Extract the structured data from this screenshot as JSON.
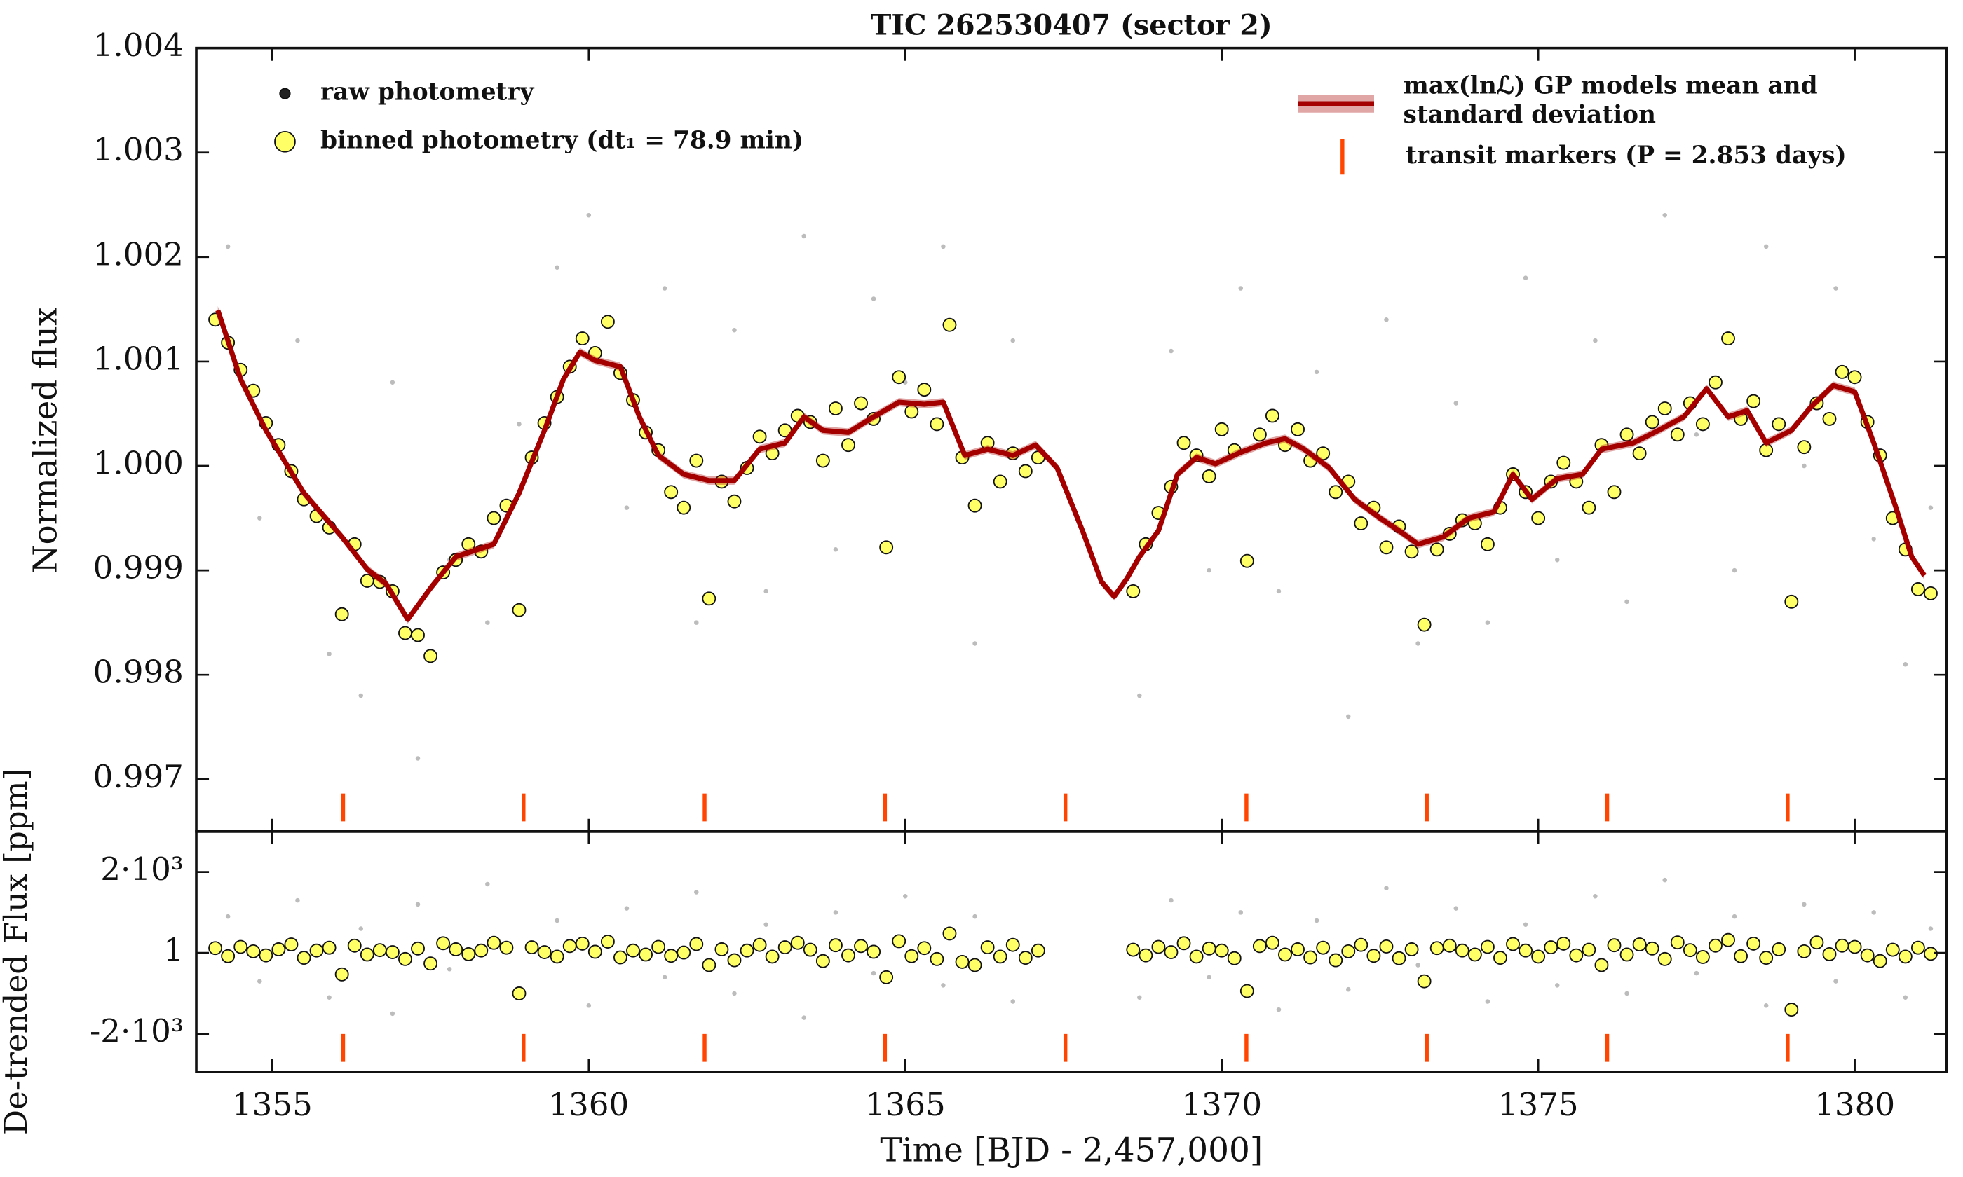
{
  "chart_data": [
    {
      "type": "scatter",
      "title": "TIC 262530407 (sector 2)",
      "ylabel": "Normalized flux",
      "xlim": [
        1353.8,
        1381.45
      ],
      "ylim": [
        0.9965,
        1.004
      ],
      "yticks": [
        0.997,
        0.998,
        0.999,
        {
          "value": 1,
          "label": "1.000"
        },
        1.001,
        1.002,
        1.003,
        1.004
      ],
      "series": [
        {
          "name": "raw photometry",
          "color": "#222222",
          "marker": ".",
          "x": [
            1354.3,
            1354.8,
            1355.4,
            1355.9,
            1356.4,
            1356.9,
            1357.3,
            1357.8,
            1358.4,
            1358.9,
            1359.5,
            1360.0,
            1360.6,
            1361.2,
            1361.7,
            1362.3,
            1362.8,
            1363.4,
            1363.9,
            1364.5,
            1365.0,
            1365.6,
            1366.1,
            1366.7,
            1368.7,
            1369.2,
            1369.8,
            1370.3,
            1370.9,
            1371.5,
            1372.0,
            1372.6,
            1373.1,
            1373.7,
            1374.2,
            1374.8,
            1375.3,
            1375.9,
            1376.4,
            1377.0,
            1377.5,
            1378.1,
            1378.6,
            1379.2,
            1379.7,
            1380.3,
            1380.8,
            1381.2
          ],
          "values": [
            1.0021,
            0.9995,
            1.0012,
            0.9982,
            0.9978,
            1.0008,
            0.9972,
            0.9991,
            0.9985,
            1.0004,
            1.0019,
            1.0024,
            0.9996,
            1.0017,
            0.9985,
            1.0013,
            0.9988,
            1.0022,
            0.9992,
            1.0016,
            1.0008,
            1.0021,
            0.9983,
            1.0012,
            0.9978,
            1.0011,
            0.999,
            1.0017,
            0.9988,
            1.0009,
            0.9976,
            1.0014,
            0.9983,
            1.0006,
            0.9985,
            1.0018,
            0.9991,
            1.0012,
            0.9987,
            1.0024,
            1.0003,
            0.999,
            1.0021,
            1.0,
            1.0017,
            0.9993,
            0.9981,
            0.9996
          ]
        },
        {
          "name": "binned photometry (dt₁ = 78.9 min)",
          "color": "#ffff66",
          "marker": "o",
          "x": [
            1354.1,
            1354.3,
            1354.5,
            1354.7,
            1354.9,
            1355.1,
            1355.3,
            1355.5,
            1355.7,
            1355.9,
            1356.1,
            1356.3,
            1356.5,
            1356.7,
            1356.9,
            1357.1,
            1357.3,
            1357.5,
            1357.7,
            1357.9,
            1358.1,
            1358.3,
            1358.5,
            1358.7,
            1358.9,
            1359.1,
            1359.3,
            1359.5,
            1359.7,
            1359.9,
            1360.1,
            1360.3,
            1360.5,
            1360.7,
            1360.9,
            1361.1,
            1361.3,
            1361.5,
            1361.7,
            1361.9,
            1362.1,
            1362.3,
            1362.5,
            1362.7,
            1362.9,
            1363.1,
            1363.3,
            1363.5,
            1363.7,
            1363.9,
            1364.1,
            1364.3,
            1364.5,
            1364.7,
            1364.9,
            1365.1,
            1365.3,
            1365.5,
            1365.7,
            1365.9,
            1366.1,
            1366.3,
            1366.5,
            1366.7,
            1366.9,
            1367.1,
            1368.6,
            1368.8,
            1369.0,
            1369.2,
            1369.4,
            1369.6,
            1369.8,
            1370.0,
            1370.2,
            1370.4,
            1370.6,
            1370.8,
            1371.0,
            1371.2,
            1371.4,
            1371.6,
            1371.8,
            1372.0,
            1372.2,
            1372.4,
            1372.6,
            1372.8,
            1373.0,
            1373.2,
            1373.4,
            1373.6,
            1373.8,
            1374.0,
            1374.2,
            1374.4,
            1374.6,
            1374.8,
            1375.0,
            1375.2,
            1375.4,
            1375.6,
            1375.8,
            1376.0,
            1376.2,
            1376.4,
            1376.6,
            1376.8,
            1377.0,
            1377.2,
            1377.4,
            1377.6,
            1377.8,
            1378.0,
            1378.2,
            1378.4,
            1378.6,
            1378.8,
            1379.0,
            1379.2,
            1379.4,
            1379.6,
            1379.8,
            1380.0,
            1380.2,
            1380.4,
            1380.6,
            1380.8,
            1381.0,
            1381.2
          ],
          "values": [
            1.0014,
            1.00118,
            1.00092,
            1.00072,
            1.00041,
            1.0002,
            0.99995,
            0.99968,
            0.99952,
            0.99941,
            0.99858,
            0.99925,
            0.9989,
            0.99889,
            0.9988,
            0.9984,
            0.99838,
            0.99818,
            0.99898,
            0.9991,
            0.99925,
            0.99918,
            0.9995,
            0.99962,
            0.99862,
            1.00008,
            1.00041,
            1.00066,
            1.00095,
            1.00122,
            1.00108,
            1.00138,
            1.00089,
            1.00063,
            1.00032,
            1.00015,
            0.99975,
            0.9996,
            1.00005,
            0.99873,
            0.99985,
            0.99966,
            0.99998,
            1.00028,
            1.00012,
            1.00034,
            1.00048,
            1.00042,
            1.00005,
            1.00055,
            1.0002,
            1.0006,
            1.00045,
            0.99922,
            1.00085,
            1.00052,
            1.00073,
            1.0004,
            1.00135,
            1.00008,
            0.99962,
            1.00022,
            0.99985,
            1.00012,
            0.99995,
            1.00008,
            0.9988,
            0.99925,
            0.99955,
            0.9998,
            1.00022,
            1.0001,
            0.9999,
            1.00035,
            1.00015,
            0.99909,
            1.0003,
            1.00048,
            1.0002,
            1.00035,
            1.00005,
            1.00012,
            0.99975,
            0.99985,
            0.99945,
            0.9996,
            0.99922,
            0.99942,
            0.99918,
            0.99848,
            0.9992,
            0.99935,
            0.99948,
            0.99945,
            0.99925,
            0.9996,
            0.99992,
            0.99975,
            0.9995,
            0.99985,
            1.00003,
            0.99985,
            0.9996,
            1.0002,
            0.99975,
            1.0003,
            1.00012,
            1.00042,
            1.00055,
            1.0003,
            1.0006,
            1.0004,
            1.0008,
            1.00122,
            1.00045,
            1.00062,
            1.00015,
            1.0004,
            0.9987,
            1.00018,
            1.0006,
            1.00045,
            1.0009,
            1.00085,
            1.00042,
            1.0001,
            0.9995,
            0.9992,
            0.99882,
            0.99878
          ]
        },
        {
          "name": "max(lnℒ) GP models mean and standard deviation",
          "color": "#a50000",
          "style": "line",
          "std": 4e-05,
          "x": [
            1354.14,
            1354.5,
            1354.9,
            1355.5,
            1356.1,
            1356.5,
            1356.8,
            1357.14,
            1357.5,
            1357.9,
            1358.5,
            1358.9,
            1359.3,
            1359.6,
            1359.86,
            1360.1,
            1360.5,
            1360.8,
            1361.1,
            1361.5,
            1361.9,
            1362.3,
            1362.7,
            1363.1,
            1363.4,
            1363.7,
            1364.1,
            1364.5,
            1364.9,
            1365.3,
            1365.6,
            1365.94,
            1366.3,
            1366.7,
            1367.06,
            1367.4,
            1367.8,
            1368.1,
            1368.3,
            1368.5,
            1368.7,
            1369.0,
            1369.3,
            1369.6,
            1369.9,
            1370.3,
            1370.7,
            1371.0,
            1371.3,
            1371.7,
            1372.1,
            1372.5,
            1372.8,
            1373.1,
            1373.5,
            1373.9,
            1374.3,
            1374.6,
            1374.9,
            1375.3,
            1375.7,
            1376.0,
            1376.5,
            1376.9,
            1377.3,
            1377.66,
            1378.0,
            1378.3,
            1378.6,
            1379.0,
            1379.3,
            1379.66,
            1380.0,
            1380.3,
            1380.64,
            1380.9,
            1381.1
          ],
          "values": [
            1.00149,
            1.00083,
            1.00034,
            0.99974,
            0.99932,
            0.99901,
            0.99887,
            0.99853,
            0.99883,
            0.99913,
            0.99925,
            0.99974,
            1.00034,
            1.00083,
            1.00109,
            1.00101,
            1.00095,
            1.00047,
            1.0001,
            0.99992,
            0.99986,
            0.99986,
            1.00016,
            1.00022,
            1.00047,
            1.00034,
            1.00032,
            1.00047,
            1.00061,
            1.00059,
            1.00061,
            1.0001,
            1.00016,
            1.0001,
            1.0002,
            0.99998,
            0.99938,
            0.99889,
            0.99875,
            0.99892,
            0.99913,
            0.99938,
            0.99992,
            1.00008,
            1.00002,
            1.00013,
            1.00022,
            1.00026,
            1.00016,
            0.99998,
            0.99968,
            0.9995,
            0.99938,
            0.99925,
            0.99932,
            0.9995,
            0.99956,
            0.99992,
            0.99968,
            0.99988,
            0.99992,
            1.00016,
            1.00022,
            1.00034,
            1.00047,
            1.00074,
            1.00047,
            1.00053,
            1.00022,
            1.00034,
            1.00056,
            1.00077,
            1.00071,
            1.00022,
            0.99962,
            0.99913,
            0.99895
          ]
        }
      ],
      "transit_markers": {
        "name": "transit markers (P = 2.853 days)",
        "color": "#ff4500",
        "x": [
          1356.12,
          1358.97,
          1361.83,
          1364.68,
          1367.53,
          1370.39,
          1373.24,
          1376.09,
          1378.94
        ]
      }
    },
    {
      "type": "scatter",
      "ylabel": "De-trended Flux [ppm]",
      "xlabel": "Time [BJD - 2,457,000]",
      "xlim": [
        1353.8,
        1381.45
      ],
      "ylim": [
        -2940,
        3000
      ],
      "xticks": [
        1355,
        1360,
        1365,
        1370,
        1375,
        1380
      ],
      "yticks": [
        {
          "value": 2000,
          "label": "2·10³"
        },
        1,
        {
          "value": -2000,
          "label": "-2·10³"
        }
      ],
      "series": [
        {
          "color": "#222222",
          "marker": ".",
          "x": [
            1354.3,
            1354.8,
            1355.4,
            1355.9,
            1356.4,
            1356.9,
            1357.3,
            1357.8,
            1358.4,
            1358.9,
            1359.5,
            1360.0,
            1360.6,
            1361.2,
            1361.7,
            1362.3,
            1362.8,
            1363.4,
            1363.9,
            1364.5,
            1365.0,
            1365.6,
            1366.1,
            1366.7,
            1368.7,
            1369.2,
            1369.8,
            1370.3,
            1370.9,
            1371.5,
            1372.0,
            1372.6,
            1373.1,
            1373.7,
            1374.2,
            1374.8,
            1375.3,
            1375.9,
            1376.4,
            1377.0,
            1377.5,
            1378.1,
            1378.6,
            1379.2,
            1379.7,
            1380.3,
            1380.8,
            1381.2
          ],
          "values": [
            900,
            -700,
            1300,
            -1100,
            600,
            -1500,
            1200,
            -400,
            1700,
            -900,
            800,
            -1300,
            1100,
            -600,
            1500,
            -1000,
            700,
            -1600,
            1000,
            -500,
            1400,
            -800,
            900,
            -1200,
            -1100,
            1300,
            -600,
            1000,
            -1400,
            800,
            -900,
            1600,
            -300,
            1100,
            -1200,
            700,
            -800,
            1400,
            -1000,
            1800,
            -500,
            900,
            -1300,
            1200,
            -700,
            1000,
            -1100,
            600
          ]
        },
        {
          "color": "#ffff66",
          "marker": "o",
          "x": [
            1354.1,
            1354.3,
            1354.5,
            1354.7,
            1354.9,
            1355.1,
            1355.3,
            1355.5,
            1355.7,
            1355.9,
            1356.1,
            1356.3,
            1356.5,
            1356.7,
            1356.9,
            1357.1,
            1357.3,
            1357.5,
            1357.7,
            1357.9,
            1358.1,
            1358.3,
            1358.5,
            1358.7,
            1358.9,
            1359.1,
            1359.3,
            1359.5,
            1359.7,
            1359.9,
            1360.1,
            1360.3,
            1360.5,
            1360.7,
            1360.9,
            1361.1,
            1361.3,
            1361.5,
            1361.7,
            1361.9,
            1362.1,
            1362.3,
            1362.5,
            1362.7,
            1362.9,
            1363.1,
            1363.3,
            1363.5,
            1363.7,
            1363.9,
            1364.1,
            1364.3,
            1364.5,
            1364.7,
            1364.9,
            1365.1,
            1365.3,
            1365.5,
            1365.7,
            1365.9,
            1366.1,
            1366.3,
            1366.5,
            1366.7,
            1366.9,
            1367.1,
            1368.6,
            1368.8,
            1369.0,
            1369.2,
            1369.4,
            1369.6,
            1369.8,
            1370.0,
            1370.2,
            1370.4,
            1370.6,
            1370.8,
            1371.0,
            1371.2,
            1371.4,
            1371.6,
            1371.8,
            1372.0,
            1372.2,
            1372.4,
            1372.6,
            1372.8,
            1373.0,
            1373.2,
            1373.4,
            1373.6,
            1373.8,
            1374.0,
            1374.2,
            1374.4,
            1374.6,
            1374.8,
            1375.0,
            1375.2,
            1375.4,
            1375.6,
            1375.8,
            1376.0,
            1376.2,
            1376.4,
            1376.6,
            1376.8,
            1377.0,
            1377.2,
            1377.4,
            1377.6,
            1377.8,
            1378.0,
            1378.2,
            1378.4,
            1378.6,
            1378.8,
            1379.0,
            1379.2,
            1379.4,
            1379.6,
            1379.8,
            1380.0,
            1380.2,
            1380.4,
            1380.6,
            1380.8,
            1381.0,
            1381.2
          ],
          "values": [
            120,
            -80,
            150,
            40,
            -60,
            90,
            210,
            -120,
            60,
            130,
            -530,
            180,
            -40,
            70,
            20,
            -150,
            110,
            -260,
            240,
            90,
            -30,
            60,
            250,
            130,
            -1000,
            140,
            20,
            -90,
            170,
            230,
            30,
            280,
            -110,
            60,
            -40,
            150,
            -70,
            10,
            220,
            -300,
            90,
            -180,
            60,
            200,
            -90,
            140,
            250,
            80,
            -200,
            190,
            -60,
            170,
            30,
            -600,
            290,
            -80,
            120,
            -150,
            480,
            -220,
            -300,
            140,
            -90,
            200,
            -120,
            60,
            80,
            -60,
            150,
            20,
            240,
            -90,
            110,
            60,
            -130,
            -940,
            170,
            250,
            -40,
            90,
            -110,
            130,
            -180,
            40,
            200,
            -70,
            160,
            -130,
            90,
            -700,
            120,
            180,
            60,
            -40,
            150,
            -120,
            220,
            60,
            -90,
            140,
            230,
            -60,
            80,
            -300,
            190,
            -40,
            210,
            110,
            -150,
            260,
            70,
            -100,
            180,
            320,
            -80,
            230,
            -120,
            90,
            -1400,
            40,
            260,
            -30,
            180,
            150,
            -60,
            -200,
            80,
            -90,
            130,
            -20
          ]
        }
      ]
    }
  ]
}
